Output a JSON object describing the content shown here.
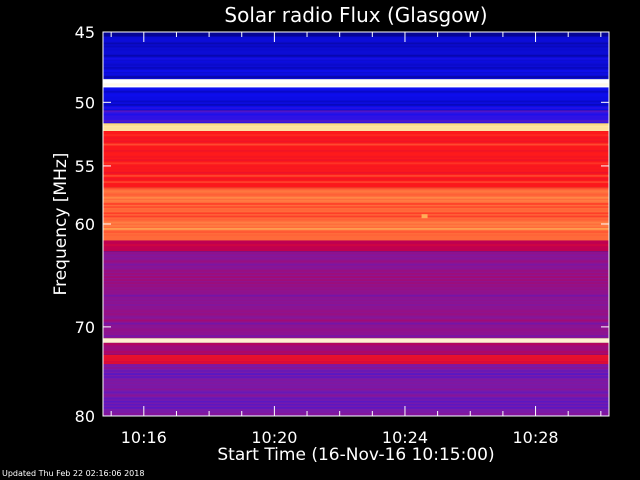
{
  "chart_data": {
    "type": "heatmap",
    "title": "Solar radio Flux (Glasgow)",
    "xlabel": "Start Time (16-Nov-16 10:15:00)",
    "ylabel": "Frequency [MHz]",
    "x_unit": "minutes",
    "xlim": [
      "10:14:45",
      "10:30:15"
    ],
    "ylim": [
      45,
      80
    ],
    "y_reversed": true,
    "y_scale": "log",
    "x_ticks": [
      {
        "label": "10:16",
        "minute": 16
      },
      {
        "label": "10:20",
        "minute": 20
      },
      {
        "label": "10:24",
        "minute": 24
      },
      {
        "label": "10:28",
        "minute": 28
      }
    ],
    "y_ticks": [
      {
        "label": "45",
        "value": 45
      },
      {
        "label": "50",
        "value": 50
      },
      {
        "label": "55",
        "value": 55
      },
      {
        "label": "60",
        "value": 60
      },
      {
        "label": "70",
        "value": 70
      },
      {
        "label": "80",
        "value": 80
      }
    ],
    "colormap": [
      "#000066",
      "#1010ff",
      "#7a1aa8",
      "#c0004f",
      "#ff1a1a",
      "#ffd166",
      "#ffffff"
    ],
    "bands": [
      {
        "from": 45.0,
        "to": 45.3,
        "intensity": 0.05
      },
      {
        "from": 45.3,
        "to": 48.3,
        "intensity": 0.12
      },
      {
        "from": 48.3,
        "to": 48.9,
        "intensity": 1.0
      },
      {
        "from": 48.9,
        "to": 50.6,
        "intensity": 0.14
      },
      {
        "from": 50.6,
        "to": 51.6,
        "intensity": 0.22
      },
      {
        "from": 51.6,
        "to": 52.2,
        "intensity": 0.9
      },
      {
        "from": 52.2,
        "to": 56.8,
        "intensity": 0.66
      },
      {
        "from": 56.8,
        "to": 61.5,
        "intensity": 0.74
      },
      {
        "from": 61.5,
        "to": 62.5,
        "intensity": 0.5
      },
      {
        "from": 62.5,
        "to": 71.2,
        "intensity": 0.38
      },
      {
        "from": 71.2,
        "to": 71.7,
        "intensity": 0.95
      },
      {
        "from": 71.7,
        "to": 73.0,
        "intensity": 0.42
      },
      {
        "from": 73.0,
        "to": 74.0,
        "intensity": 0.6
      },
      {
        "from": 74.0,
        "to": 80.0,
        "intensity": 0.33
      }
    ],
    "features": [
      {
        "minute": 24.6,
        "freq": 59.3,
        "intensity": 0.8
      }
    ]
  },
  "footer": "Updated Thu Feb 22 02:16:06 2018"
}
